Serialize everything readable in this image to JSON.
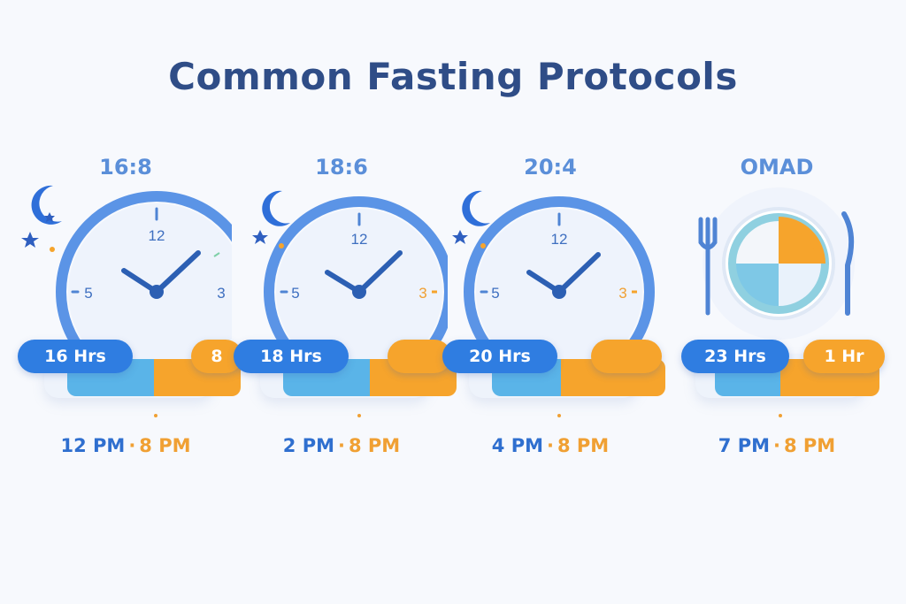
{
  "title": "Common Fasting Protocols",
  "protocols": [
    {
      "label": "16:8",
      "fast_label": "16 Hrs",
      "eat_label": "8",
      "start": "12 PM",
      "separator": "·",
      "end": "8 PM",
      "fast_hours": 16,
      "eat_hours": 8
    },
    {
      "label": "18:6",
      "fast_label": "18 Hrs",
      "eat_label": "",
      "start": "2 PM",
      "separator": "·",
      "end": "8 PM",
      "fast_hours": 18,
      "eat_hours": 6
    },
    {
      "label": "20:4",
      "fast_label": "20 Hrs",
      "eat_label": "",
      "start": "4 PM",
      "separator": "·",
      "end": "8 PM",
      "fast_hours": 20,
      "eat_hours": 4
    },
    {
      "label": "OMAD",
      "fast_label": "23 Hrs",
      "eat_label": "1 Hr",
      "start": "7 PM",
      "separator": "·",
      "end": "8 PM",
      "fast_hours": 23,
      "eat_hours": 1
    }
  ],
  "clock_numbers": {
    "top": "12",
    "left": "5",
    "right": "3"
  },
  "colors": {
    "fast": "#2f7de1",
    "eat": "#f6a42c",
    "ring": "#5b94e6",
    "face": "#eef3fc"
  },
  "icons": {
    "night": "moon-stars-icon",
    "meal": "plate-fork-knife-icon"
  }
}
